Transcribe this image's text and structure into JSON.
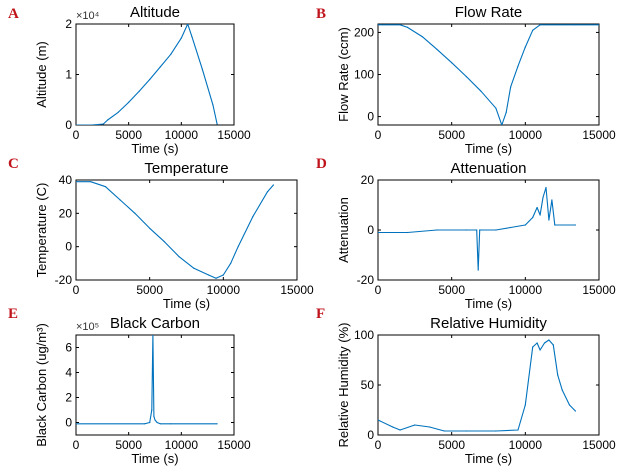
{
  "chart_data": [
    {
      "panel_label": "A",
      "type": "line",
      "title": "Altitude",
      "xlabel": "Time (s)",
      "ylabel": "Altitude (m)",
      "y_multiplier": "×10⁴",
      "xlim": [
        0,
        15000
      ],
      "ylim": [
        0,
        2
      ],
      "xticks": [
        "0",
        "5000",
        "10000",
        "15000"
      ],
      "yticks": [
        "0",
        "1",
        "2"
      ],
      "x": [
        0,
        1500,
        2600,
        3000,
        4000,
        5000,
        6000,
        7000,
        8000,
        9000,
        10000,
        10600,
        11000,
        12000,
        13000,
        13400
      ],
      "y": [
        0,
        0,
        0.02,
        0.1,
        0.25,
        0.45,
        0.67,
        0.9,
        1.15,
        1.4,
        1.72,
        2.0,
        1.75,
        1.1,
        0.4,
        0.02
      ]
    },
    {
      "panel_label": "B",
      "type": "line",
      "title": "Flow Rate",
      "xlabel": "Time (s)",
      "ylabel": "Flow Rate (ccm)",
      "xlim": [
        0,
        15000
      ],
      "ylim": [
        -20,
        220
      ],
      "xticks": [
        "0",
        "5000",
        "10000",
        "15000"
      ],
      "yticks": [
        "0",
        "100",
        "200"
      ],
      "x": [
        0,
        1500,
        2000,
        3000,
        4000,
        5000,
        6000,
        7000,
        8000,
        8400,
        8700,
        9000,
        9500,
        10000,
        10500,
        11000,
        13400,
        15000
      ],
      "y": [
        218,
        218,
        212,
        190,
        160,
        128,
        95,
        60,
        20,
        -20,
        10,
        70,
        120,
        165,
        205,
        218,
        218,
        218
      ]
    },
    {
      "panel_label": "C",
      "type": "line",
      "title": "Temperature",
      "xlabel": "Time (s)",
      "ylabel": "Temperature (C)",
      "xlim": [
        0,
        15000
      ],
      "ylim": [
        -20,
        40
      ],
      "xticks": [
        "0",
        "5000",
        "10000",
        "15000"
      ],
      "yticks": [
        "-20",
        "0",
        "20",
        "40"
      ],
      "x": [
        0,
        1000,
        2000,
        3000,
        4000,
        5000,
        6000,
        7000,
        8000,
        9000,
        9500,
        10000,
        10500,
        11000,
        12000,
        13000,
        13400
      ],
      "y": [
        39,
        39,
        36,
        28,
        20,
        11,
        3,
        -6,
        -13,
        -17,
        -19,
        -17,
        -10,
        0,
        18,
        33,
        37
      ]
    },
    {
      "panel_label": "D",
      "type": "line",
      "title": "Attenuation",
      "xlabel": "Time (s)",
      "ylabel": "Attenuation",
      "xlim": [
        0,
        15000
      ],
      "ylim": [
        -20,
        20
      ],
      "xticks": [
        "0",
        "5000",
        "10000",
        "15000"
      ],
      "yticks": [
        "-20",
        "0",
        "20"
      ],
      "x": [
        0,
        2000,
        4000,
        6000,
        6700,
        6800,
        6900,
        7000,
        8000,
        9000,
        10000,
        10500,
        10800,
        11000,
        11200,
        11400,
        11600,
        11800,
        12000,
        13400
      ],
      "y": [
        -1,
        -1,
        0,
        0,
        0,
        -16,
        0,
        0,
        0,
        1,
        2,
        5,
        9,
        6,
        13,
        17,
        4,
        12,
        2,
        2
      ]
    },
    {
      "panel_label": "E",
      "type": "line",
      "title": "Black Carbon",
      "xlabel": "Time (s)",
      "ylabel": "Black Carbon (ug/m³)",
      "y_multiplier": "×10⁵",
      "xlim": [
        0,
        15000
      ],
      "ylim": [
        -1,
        7
      ],
      "xticks": [
        "0",
        "5000",
        "10000",
        "15000"
      ],
      "yticks": [
        "0",
        "2",
        "4",
        "6"
      ],
      "x": [
        0,
        6500,
        7000,
        7200,
        7300,
        7400,
        7500,
        7700,
        8000,
        9000,
        13400
      ],
      "y": [
        -0.1,
        -0.1,
        0,
        1,
        7,
        0.5,
        0.2,
        0,
        -0.1,
        -0.1,
        -0.1
      ]
    },
    {
      "panel_label": "F",
      "type": "line",
      "title": "Relative Humidity",
      "xlabel": "Time (s)",
      "ylabel": "Relative Humidity (%)",
      "xlim": [
        0,
        15000
      ],
      "ylim": [
        0,
        100
      ],
      "xticks": [
        "0",
        "5000",
        "10000",
        "15000"
      ],
      "yticks": [
        "0",
        "50",
        "100"
      ],
      "x": [
        0,
        1000,
        1500,
        2500,
        3500,
        4500,
        6000,
        8000,
        9500,
        10000,
        10500,
        10800,
        11000,
        11300,
        11600,
        11900,
        12200,
        12500,
        13000,
        13400
      ],
      "y": [
        15,
        8,
        5,
        10,
        8,
        4,
        4,
        4,
        5,
        30,
        88,
        92,
        85,
        92,
        95,
        90,
        60,
        45,
        30,
        24
      ]
    }
  ]
}
